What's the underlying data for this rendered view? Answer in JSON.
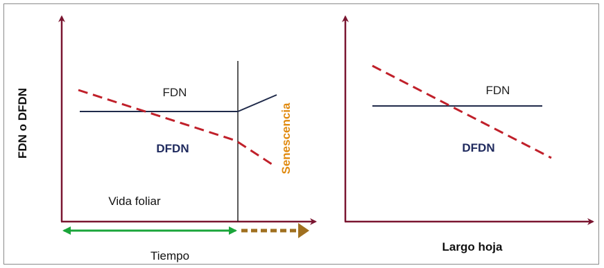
{
  "left_panel": {
    "y_axis_label": "FDN o DFDN",
    "x_axis_label": "Tiempo",
    "fdn_label": "FDN",
    "dfdn_label": "DFDN",
    "phase_label": "Vida foliar",
    "senescence_label": "Senescencia"
  },
  "right_panel": {
    "x_axis_label": "Largo hoja",
    "fdn_label": "FDN",
    "dfdn_label": "DFDN"
  },
  "colors": {
    "axis": "#7a1530",
    "fdn_line": "#1f2a4a",
    "dfdn_line": "#c0202a",
    "dfdn_text": "#1f2a5e",
    "time_arrow": "#1aa53a",
    "senescence_arrow": "#a07020",
    "senescence_text": "#e08a10"
  }
}
